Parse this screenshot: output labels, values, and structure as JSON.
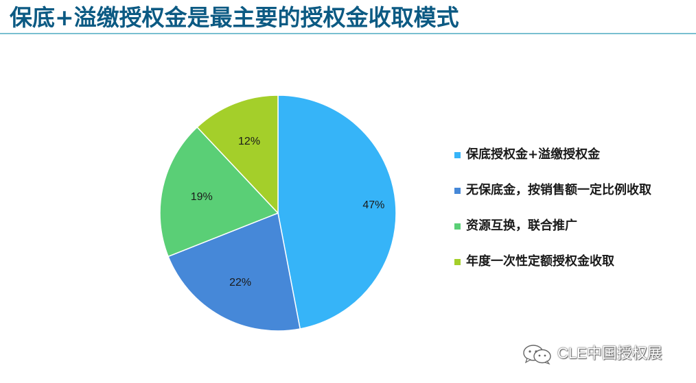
{
  "title": "保底+溢缴授权金是最主要的授权金收取模式",
  "chart_data": {
    "type": "pie",
    "title": "保底+溢缴授权金是最主要的授权金收取模式",
    "slices": [
      {
        "label": "保底授权金+溢缴授权金",
        "value": 47,
        "display": "47%",
        "color": "#36b4f8"
      },
      {
        "label": "无保底金，按销售额一定比例收取",
        "value": 22,
        "display": "22%",
        "color": "#4688d8"
      },
      {
        "label": "资源互换，联合推广",
        "value": 19,
        "display": "19%",
        "color": "#5acf76"
      },
      {
        "label": "年度一次性定额授权金收取",
        "value": 12,
        "display": "12%",
        "color": "#a4cf2a"
      }
    ],
    "start_angle_deg": 0,
    "direction": "clockwise",
    "legend_position": "right"
  },
  "watermark": {
    "text": "CLE中国授权展",
    "icon": "wechat-icon"
  }
}
